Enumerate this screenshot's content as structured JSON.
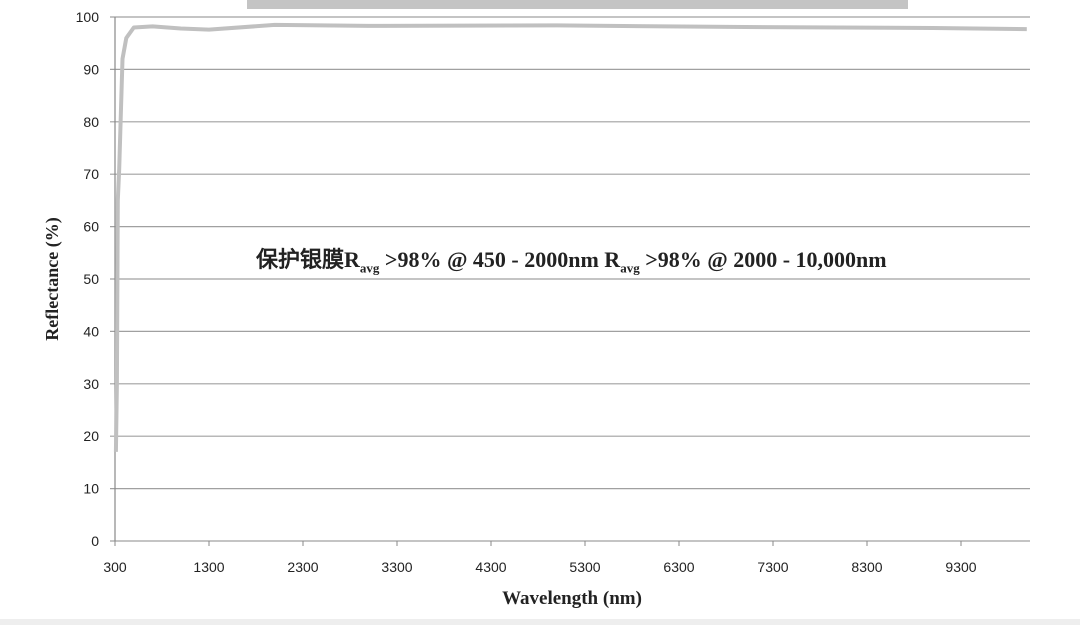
{
  "chart_data": {
    "type": "line",
    "xlabel": "Wavelength (nm)",
    "ylabel": "Reflectance (%)",
    "xlim": [
      300,
      10000
    ],
    "ylim": [
      0,
      100
    ],
    "x_ticks": [
      300,
      1300,
      2300,
      3300,
      4300,
      5300,
      6300,
      7300,
      8300,
      9300
    ],
    "y_ticks": [
      0,
      10,
      20,
      30,
      40,
      50,
      60,
      70,
      80,
      90,
      100
    ],
    "grid": "horizontal",
    "line_color": "#c0c0c0",
    "series": [
      {
        "x": [
          310,
          320,
          330,
          345,
          360,
          380,
          420,
          500,
          700,
          1000,
          1300,
          2000,
          3000,
          5000,
          7000,
          9000,
          10000
        ],
        "y": [
          17,
          30,
          65,
          71,
          80,
          92,
          96,
          98,
          98.2,
          97.8,
          97.6,
          98.5,
          98.3,
          98.4,
          98.1,
          97.9,
          97.7
        ]
      }
    ],
    "annotation": {
      "prefix": "保护银膜",
      "r1": "R",
      "r1_sub": "avg",
      "r1_text": " >98% @ 450 - 2000nm ",
      "r2": "R",
      "r2_sub": "avg",
      "r2_text": " >98% @ 2000 - 10,000nm"
    }
  }
}
